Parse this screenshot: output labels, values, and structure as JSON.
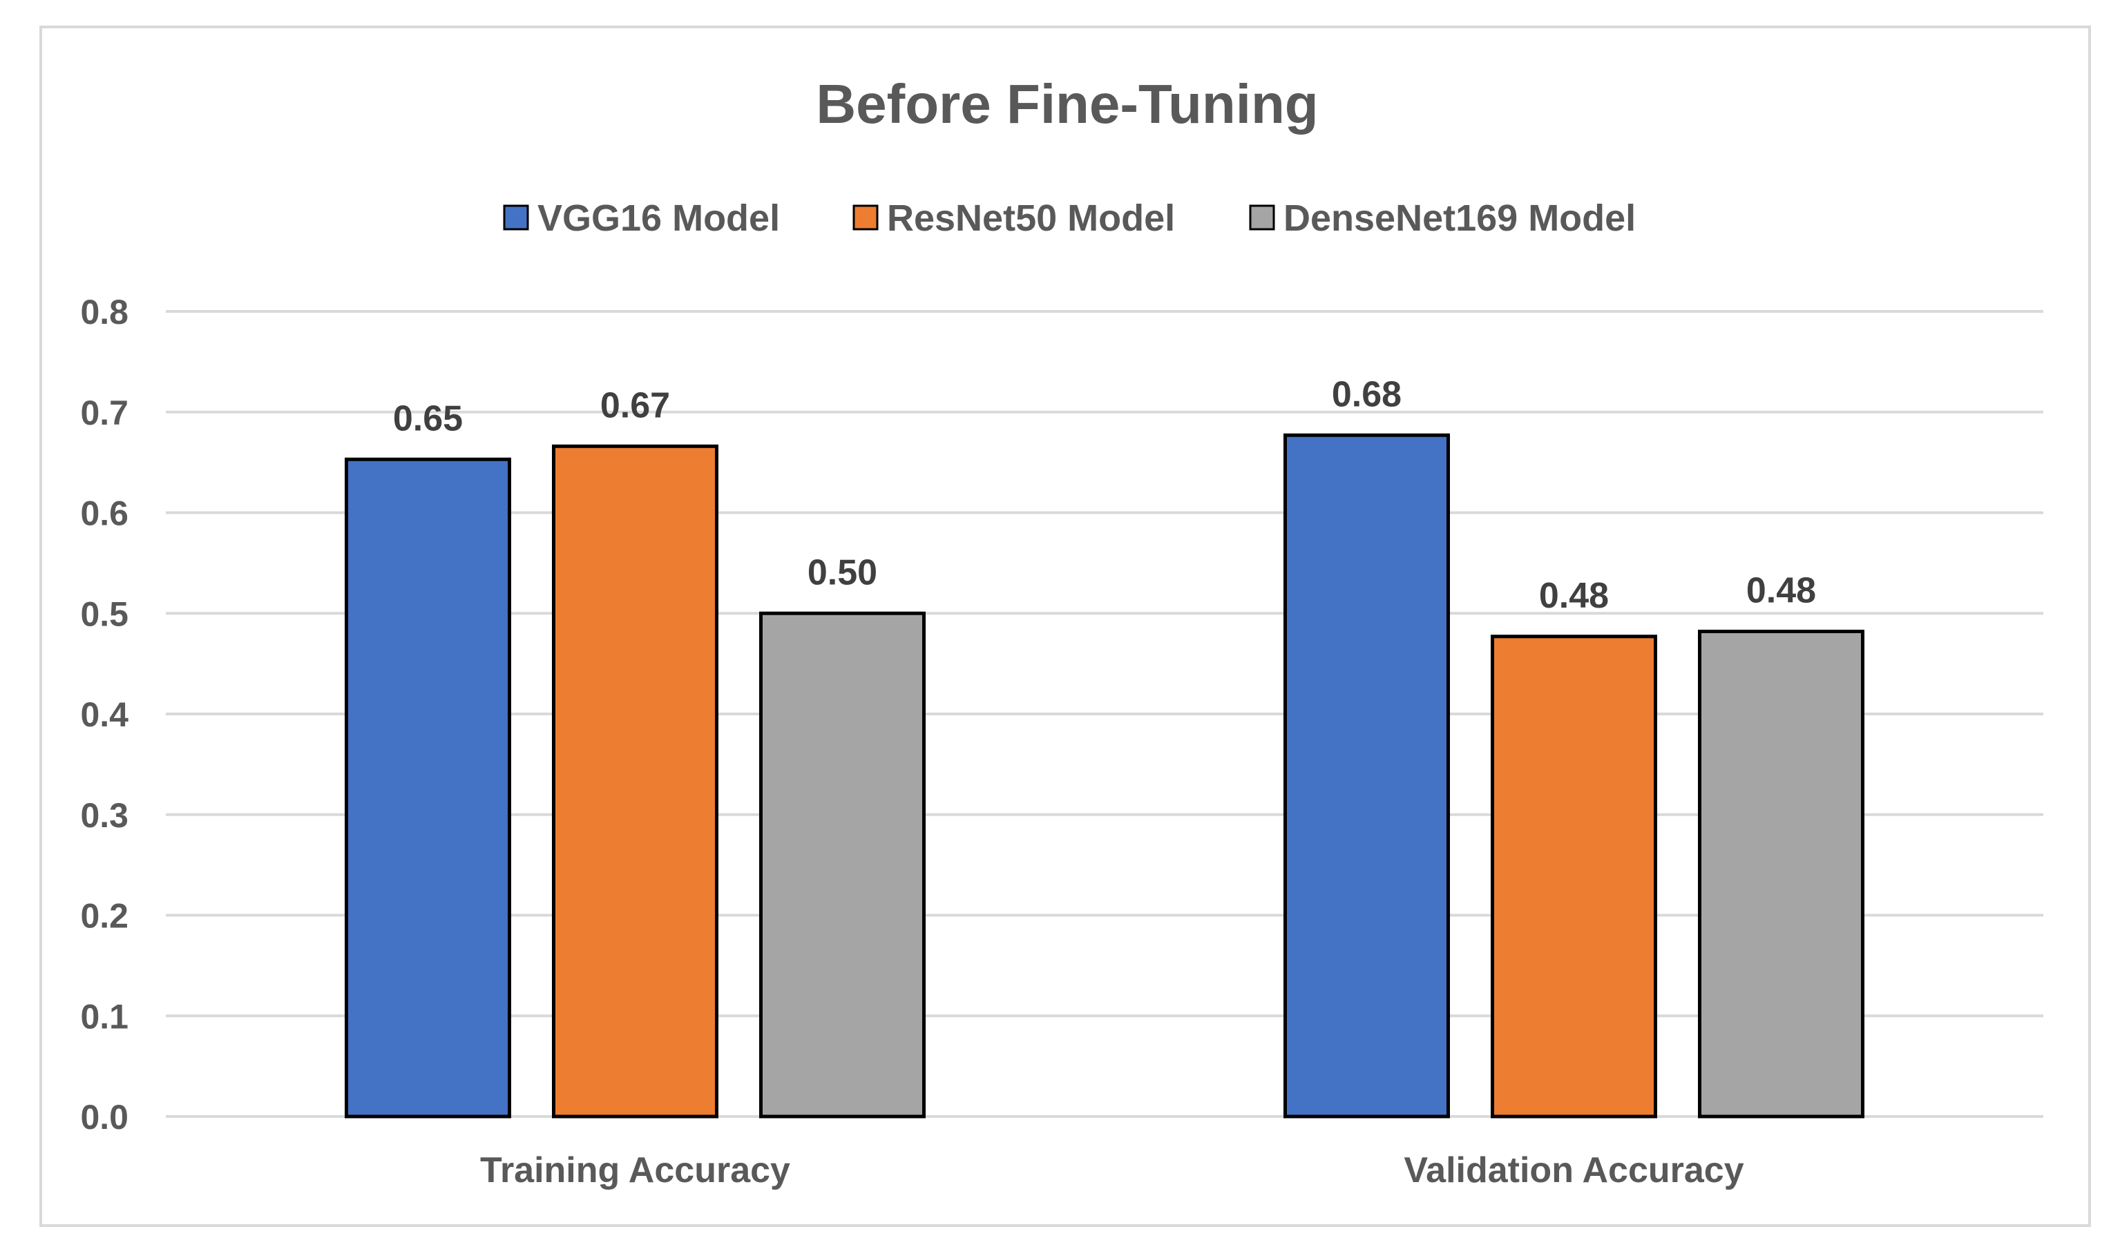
{
  "chart_data": {
    "type": "bar",
    "title": "Before Fine-Tuning",
    "categories": [
      "Training Accuracy",
      "Validation Accuracy"
    ],
    "series": [
      {
        "name": "VGG16 Model",
        "color": "#4472c4",
        "values": [
          0.653,
          0.677
        ],
        "labels": [
          "0.65",
          "0.68"
        ]
      },
      {
        "name": "ResNet50 Model",
        "color": "#ed7d31",
        "values": [
          0.666,
          0.477
        ],
        "labels": [
          "0.67",
          "0.48"
        ]
      },
      {
        "name": "DenseNet169 Model",
        "color": "#a5a5a5",
        "values": [
          0.5,
          0.482
        ],
        "labels": [
          "0.50",
          "0.48"
        ]
      }
    ],
    "ylim": [
      0,
      0.8
    ],
    "yticks": [
      "0.0",
      "0.1",
      "0.2",
      "0.3",
      "0.4",
      "0.5",
      "0.6",
      "0.7",
      "0.8"
    ],
    "xlabel": "",
    "ylabel": "",
    "grid": true,
    "legend_position": "top"
  }
}
